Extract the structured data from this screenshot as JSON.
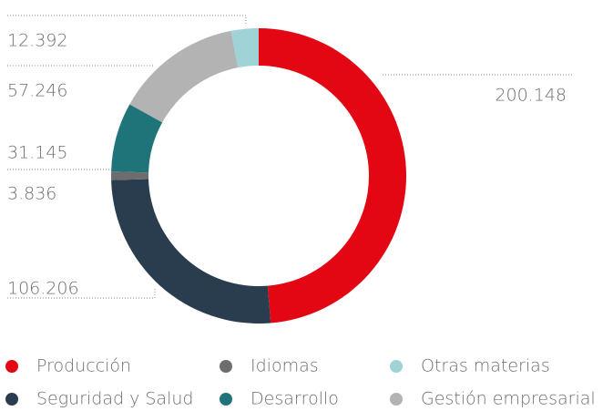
{
  "chart_data": {
    "type": "donut",
    "categories": [
      "Producción",
      "Seguridad y Salud",
      "Idiomas",
      "Desarrollo",
      "Gestión empresarial",
      "Otras materias"
    ],
    "values": [
      200148,
      106206,
      3836,
      31145,
      57246,
      12392
    ],
    "value_labels": [
      "200.148",
      "106.206",
      "3.836",
      "31.145",
      "57.246",
      "12.392"
    ],
    "colors": [
      "#e30613",
      "#2a3d4f",
      "#6d6d6d",
      "#1f7479",
      "#b3b3b3",
      "#9fd3d6"
    ],
    "legend": true
  }
}
